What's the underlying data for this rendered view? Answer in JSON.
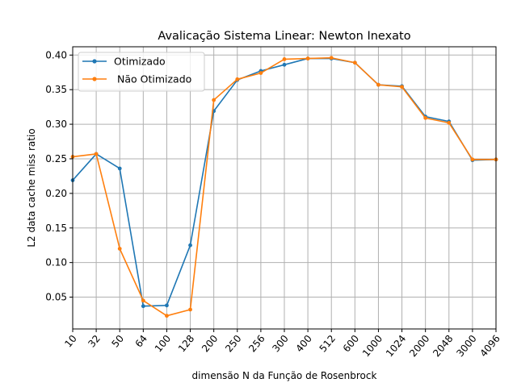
{
  "chart_data": {
    "type": "line",
    "title": "Avalicação Sistema Linear:  Newton Inexato",
    "xlabel": "dimensão N da Função de Rosenbrock",
    "ylabel": "L2 data cache miss ratio",
    "categories": [
      "10",
      "32",
      "50",
      "64",
      "100",
      "128",
      "200",
      "250",
      "256",
      "300",
      "400",
      "512",
      "600",
      "1000",
      "1024",
      "2000",
      "2048",
      "3000",
      "4096"
    ],
    "yticks": [
      "0.05",
      "0.10",
      "0.15",
      "0.20",
      "0.25",
      "0.30",
      "0.35",
      "0.40"
    ],
    "ylim": [
      0.004,
      0.412
    ],
    "grid": true,
    "legend_position": "top-left",
    "series": [
      {
        "name": "Otimizado",
        "color": "#1f77b4",
        "marker": "circle",
        "values": [
          0.219,
          0.257,
          0.236,
          0.037,
          0.038,
          0.125,
          0.319,
          0.364,
          0.377,
          0.386,
          0.395,
          0.395,
          0.389,
          0.357,
          0.355,
          0.311,
          0.304,
          0.248,
          0.249
        ]
      },
      {
        "name": " Não Otimizado",
        "color": "#ff7f0e",
        "marker": "circle",
        "values": [
          0.253,
          0.257,
          0.12,
          0.045,
          0.023,
          0.032,
          0.335,
          0.365,
          0.374,
          0.394,
          0.395,
          0.396,
          0.389,
          0.357,
          0.354,
          0.309,
          0.302,
          0.249,
          0.249
        ]
      }
    ]
  }
}
